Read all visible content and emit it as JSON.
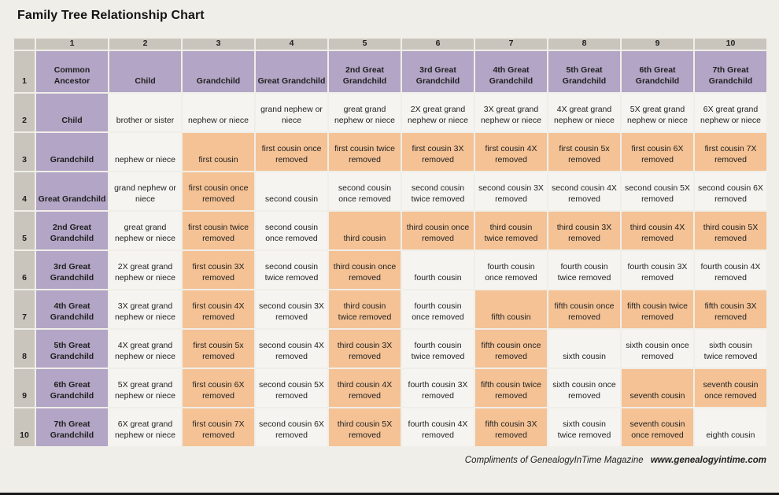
{
  "page": {
    "title": "Family Tree Relationship Chart",
    "footer": {
      "plain": "Compliments of GenealogyInTime Magazine",
      "bold": "www.genealogyintime.com"
    }
  },
  "colors": {
    "page_bg": "#f0eee8",
    "number_strip_bg": "#c9c5bc",
    "header_bg": "#b2a5c5",
    "highlight_bg": "#f4c295",
    "cell_bg": "#f6f4f0",
    "text": "#1f1f1f",
    "bottom_bar": "#191919"
  },
  "chart_data": {
    "type": "table",
    "title": "Family Tree Relationship Chart",
    "column_numbers": [
      "1",
      "2",
      "3",
      "4",
      "5",
      "6",
      "7",
      "8",
      "9",
      "10"
    ],
    "row_numbers": [
      "1",
      "2",
      "3",
      "4",
      "5",
      "6",
      "7",
      "8",
      "9",
      "10"
    ],
    "columns": [
      "Common\nAncestor",
      "Child",
      "Grandchild",
      "Great Grandchild",
      "2nd Great\nGrandchild",
      "3rd Great\nGrandchild",
      "4th Great\nGrandchild",
      "5th Great\nGrandchild",
      "6th Great\nGrandchild",
      "7th Great\nGrandchild"
    ],
    "row_labels": [
      "Child",
      "Grandchild",
      "Great Grandchild",
      "2nd Great\nGrandchild",
      "3rd Great\nGrandchild",
      "4th Great\nGrandchild",
      "5th Great\nGrandchild",
      "6th Great\nGrandchild",
      "7th Great\nGrandchild"
    ],
    "cells": [
      [
        {
          "t": "brother or sister",
          "hl": false
        },
        {
          "t": "nephew or niece",
          "hl": false
        },
        {
          "t": "grand nephew or\nniece",
          "hl": false
        },
        {
          "t": "great grand\nnephew or niece",
          "hl": false
        },
        {
          "t": "2X great grand\nnephew or niece",
          "hl": false
        },
        {
          "t": "3X great grand\nnephew or niece",
          "hl": false
        },
        {
          "t": "4X great grand\nnephew or niece",
          "hl": false
        },
        {
          "t": "5X great grand\nnephew or niece",
          "hl": false
        },
        {
          "t": "6X great grand\nnephew or niece",
          "hl": false
        }
      ],
      [
        {
          "t": "nephew or niece",
          "hl": false
        },
        {
          "t": "first cousin",
          "hl": true
        },
        {
          "t": "first cousin once\nremoved",
          "hl": true
        },
        {
          "t": "first cousin twice\nremoved",
          "hl": true
        },
        {
          "t": "first cousin 3X\nremoved",
          "hl": true
        },
        {
          "t": "first cousin 4X\nremoved",
          "hl": true
        },
        {
          "t": "first cousin 5x\nremoved",
          "hl": true
        },
        {
          "t": "first cousin 6X\nremoved",
          "hl": true
        },
        {
          "t": "first cousin 7X\nremoved",
          "hl": true
        }
      ],
      [
        {
          "t": "grand nephew or\nniece",
          "hl": false
        },
        {
          "t": "first cousin once\nremoved",
          "hl": true
        },
        {
          "t": "second cousin",
          "hl": false
        },
        {
          "t": "second cousin\nonce removed",
          "hl": false
        },
        {
          "t": "second cousin\ntwice removed",
          "hl": false
        },
        {
          "t": "second cousin 3X\nremoved",
          "hl": false
        },
        {
          "t": "second cousin 4X\nremoved",
          "hl": false
        },
        {
          "t": "second cousin 5X\nremoved",
          "hl": false
        },
        {
          "t": "second cousin 6X\nremoved",
          "hl": false
        }
      ],
      [
        {
          "t": "great grand\nnephew or niece",
          "hl": false
        },
        {
          "t": "first cousin twice\nremoved",
          "hl": true
        },
        {
          "t": "second cousin\nonce removed",
          "hl": false
        },
        {
          "t": "third cousin",
          "hl": true
        },
        {
          "t": "third cousin once\nremoved",
          "hl": true
        },
        {
          "t": "third cousin\ntwice removed",
          "hl": true
        },
        {
          "t": "third cousin 3X\nremoved",
          "hl": true
        },
        {
          "t": "third cousin 4X\nremoved",
          "hl": true
        },
        {
          "t": "third cousin 5X\nremoved",
          "hl": true
        }
      ],
      [
        {
          "t": "2X great grand\nnephew or niece",
          "hl": false
        },
        {
          "t": "first cousin 3X\nremoved",
          "hl": true
        },
        {
          "t": "second cousin\ntwice removed",
          "hl": false
        },
        {
          "t": "third cousin once\nremoved",
          "hl": true
        },
        {
          "t": "fourth cousin",
          "hl": false
        },
        {
          "t": "fourth cousin\nonce removed",
          "hl": false
        },
        {
          "t": "fourth cousin\ntwice removed",
          "hl": false
        },
        {
          "t": "fourth cousin 3X\nremoved",
          "hl": false
        },
        {
          "t": "fourth cousin 4X\nremoved",
          "hl": false
        }
      ],
      [
        {
          "t": "3X great grand\nnephew or niece",
          "hl": false
        },
        {
          "t": "first cousin 4X\nremoved",
          "hl": true
        },
        {
          "t": "second cousin 3X\nremoved",
          "hl": false
        },
        {
          "t": "third cousin\ntwice removed",
          "hl": true
        },
        {
          "t": "fourth cousin\nonce removed",
          "hl": false
        },
        {
          "t": "fifth cousin",
          "hl": true
        },
        {
          "t": "fifth cousin once\nremoved",
          "hl": true
        },
        {
          "t": "fifth cousin twice\nremoved",
          "hl": true
        },
        {
          "t": "fifth cousin 3X\nremoved",
          "hl": true
        }
      ],
      [
        {
          "t": "4X great grand\nnephew or niece",
          "hl": false
        },
        {
          "t": "first cousin 5x\nremoved",
          "hl": true
        },
        {
          "t": "second cousin 4X\nremoved",
          "hl": false
        },
        {
          "t": "third cousin 3X\nremoved",
          "hl": true
        },
        {
          "t": "fourth cousin\ntwice removed",
          "hl": false
        },
        {
          "t": "fifth cousin once\nremoved",
          "hl": true
        },
        {
          "t": "sixth cousin",
          "hl": false
        },
        {
          "t": "sixth cousin once\nremoved",
          "hl": false
        },
        {
          "t": "sixth cousin\ntwice removed",
          "hl": false
        }
      ],
      [
        {
          "t": "5X great grand\nnephew or niece",
          "hl": false
        },
        {
          "t": "first cousin 6X\nremoved",
          "hl": true
        },
        {
          "t": "second cousin 5X\nremoved",
          "hl": false
        },
        {
          "t": "third cousin 4X\nremoved",
          "hl": true
        },
        {
          "t": "fourth cousin 3X\nremoved",
          "hl": false
        },
        {
          "t": "fifth cousin twice\nremoved",
          "hl": true
        },
        {
          "t": "sixth cousin once\nremoved",
          "hl": false
        },
        {
          "t": "seventh cousin",
          "hl": true
        },
        {
          "t": "seventh cousin\nonce removed",
          "hl": true
        }
      ],
      [
        {
          "t": "6X great grand\nnephew or niece",
          "hl": false
        },
        {
          "t": "first cousin 7X\nremoved",
          "hl": true
        },
        {
          "t": "second cousin 6X\nremoved",
          "hl": false
        },
        {
          "t": "third cousin 5X\nremoved",
          "hl": true
        },
        {
          "t": "fourth cousin 4X\nremoved",
          "hl": false
        },
        {
          "t": "fifth cousin 3X\nremoved",
          "hl": true
        },
        {
          "t": "sixth cousin\ntwice removed",
          "hl": false
        },
        {
          "t": "seventh cousin\nonce removed",
          "hl": true
        },
        {
          "t": "eighth cousin",
          "hl": false
        }
      ]
    ]
  }
}
